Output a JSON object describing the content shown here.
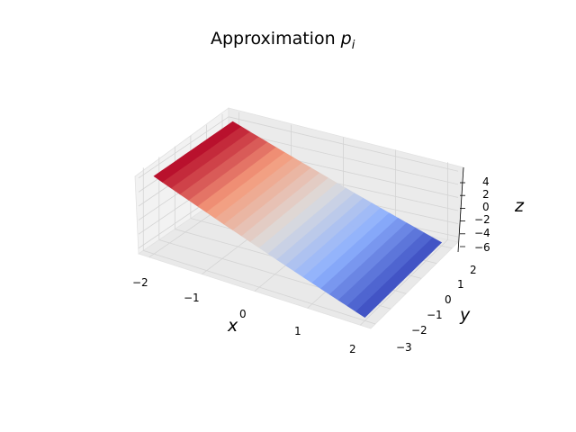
{
  "chart_data": {
    "type": "surface3d",
    "title": "Approximation",
    "title_math": "p",
    "title_math_sub": "i",
    "xlabel": "x",
    "ylabel": "y",
    "zlabel": "z",
    "x_ticks": [
      "−2",
      "−1",
      "0",
      "1",
      "2"
    ],
    "y_ticks": [
      "−3",
      "−2",
      "−1",
      "0",
      "1",
      "2"
    ],
    "z_ticks": [
      "−6",
      "−4",
      "−2",
      "0",
      "2",
      "4"
    ],
    "xlim": [
      -2.2,
      2.2
    ],
    "ylim": [
      -3.3,
      2.4
    ],
    "zlim": [
      -6.8,
      5
    ],
    "grid": true,
    "colormap": "coolwarm",
    "colors": {
      "high": "#b40426",
      "mid": "#dddcdc",
      "low": "#3b4cc0",
      "pane": "#f2f2f2",
      "grid": "#d4d4d4"
    },
    "surface": {
      "x_range": [
        -2,
        2
      ],
      "y_range": [
        -3,
        2
      ],
      "description_of_values": "z ≈ 4 at x = -2 decreasing to ≈ -6 at x = 2, roughly linear in x",
      "z_at_x_min": 4.3,
      "z_at_x_max": -6.3
    }
  }
}
